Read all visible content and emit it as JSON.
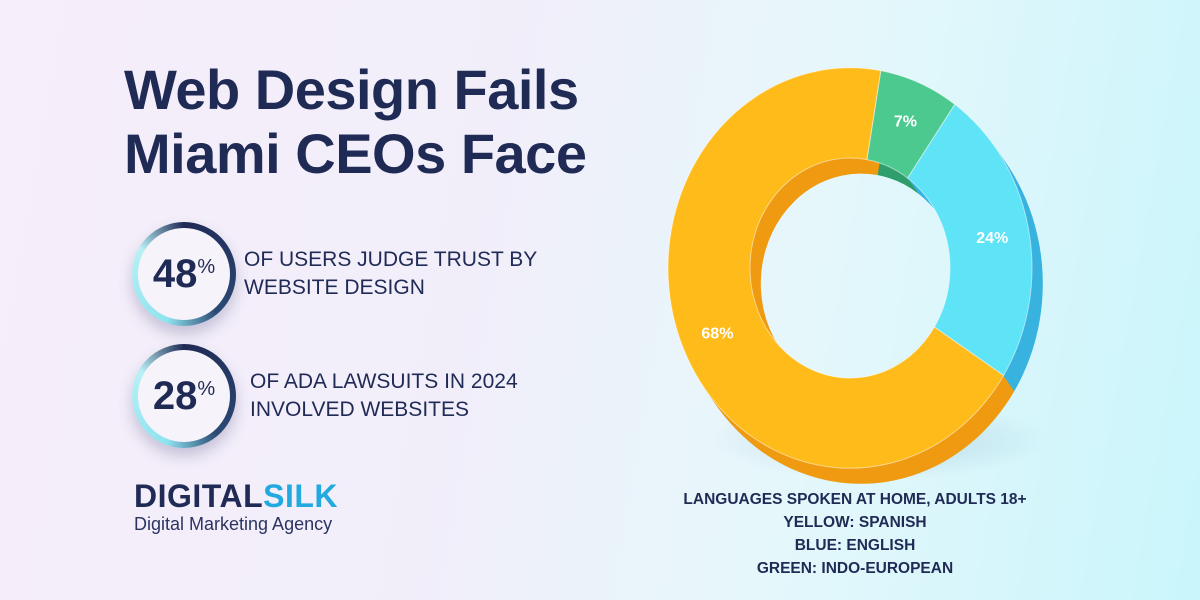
{
  "title_lines": [
    "Web Design Fails",
    "Miami CEOs Face"
  ],
  "stats": [
    {
      "value": "48",
      "unit": "%",
      "text_lines": [
        "OF USERS JUDGE TRUST BY",
        "WEBSITE DESIGN"
      ]
    },
    {
      "value": "28",
      "unit": "%",
      "text_lines": [
        "OF ADA LAWSUITS IN 2024",
        "INVOLVED WEBSITES"
      ]
    }
  ],
  "logo": {
    "part1": "DIGITAL",
    "part2": "SILK",
    "tagline": "Digital Marketing Agency"
  },
  "caption_lines": [
    "LANGUAGES SPOKEN AT HOME, ADULTS 18+",
    "YELLOW: SPANISH",
    "BLUE: ENGLISH",
    "GREEN: INDO-EUROPEAN"
  ],
  "chart_data": {
    "type": "pie",
    "donut": true,
    "title": "LANGUAGES SPOKEN AT HOME, ADULTS 18+",
    "slices": [
      {
        "name": "Indo-European",
        "value": 7,
        "label": "7%",
        "color": "#4cc98f",
        "depth_color": "#2f9e6c"
      },
      {
        "name": "English",
        "value": 24,
        "label": "24%",
        "color": "#5ee3f7",
        "depth_color": "#38b3e0"
      },
      {
        "name": "Spanish",
        "value": 68,
        "label": "68%",
        "color": "#ffbb1a",
        "depth_color": "#ef9a10"
      }
    ]
  }
}
